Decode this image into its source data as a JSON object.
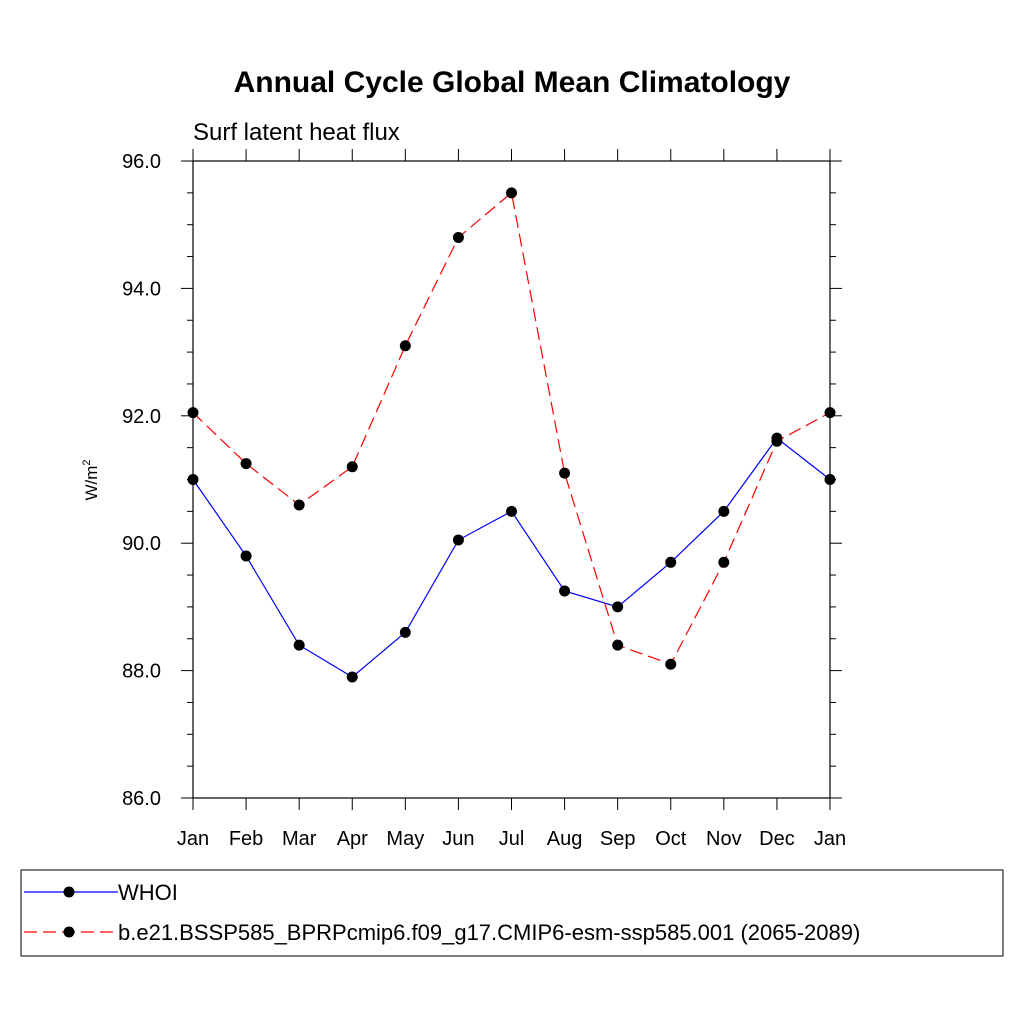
{
  "chart_data": {
    "type": "line",
    "title": "Annual Cycle Global Mean Climatology",
    "subtitle": "Surf latent heat flux",
    "ylabel_base": "W/m",
    "ylabel_sup": "2",
    "categories": [
      "Jan",
      "Feb",
      "Mar",
      "Apr",
      "May",
      "Jun",
      "Jul",
      "Aug",
      "Sep",
      "Oct",
      "Nov",
      "Dec",
      "Jan"
    ],
    "ylim": [
      86.0,
      96.0
    ],
    "yticks": [
      "86.0",
      "88.0",
      "90.0",
      "92.0",
      "94.0",
      "96.0"
    ],
    "series": [
      {
        "name": "WHOI",
        "color": "#0000ff",
        "dashed": false,
        "values": [
          91.0,
          89.8,
          88.4,
          87.9,
          88.6,
          90.05,
          90.5,
          89.25,
          89.0,
          89.7,
          90.5,
          91.65,
          91.0
        ]
      },
      {
        "name": "b.e21.BSSP585_BPRPcmip6.f09_g17.CMIP6-esm-ssp585.001 (2065-2089)",
        "color": "#ff0000",
        "dashed": true,
        "values": [
          92.05,
          91.25,
          90.6,
          91.2,
          93.1,
          94.8,
          95.5,
          91.1,
          88.4,
          88.1,
          89.7,
          91.6,
          92.05
        ]
      }
    ]
  }
}
